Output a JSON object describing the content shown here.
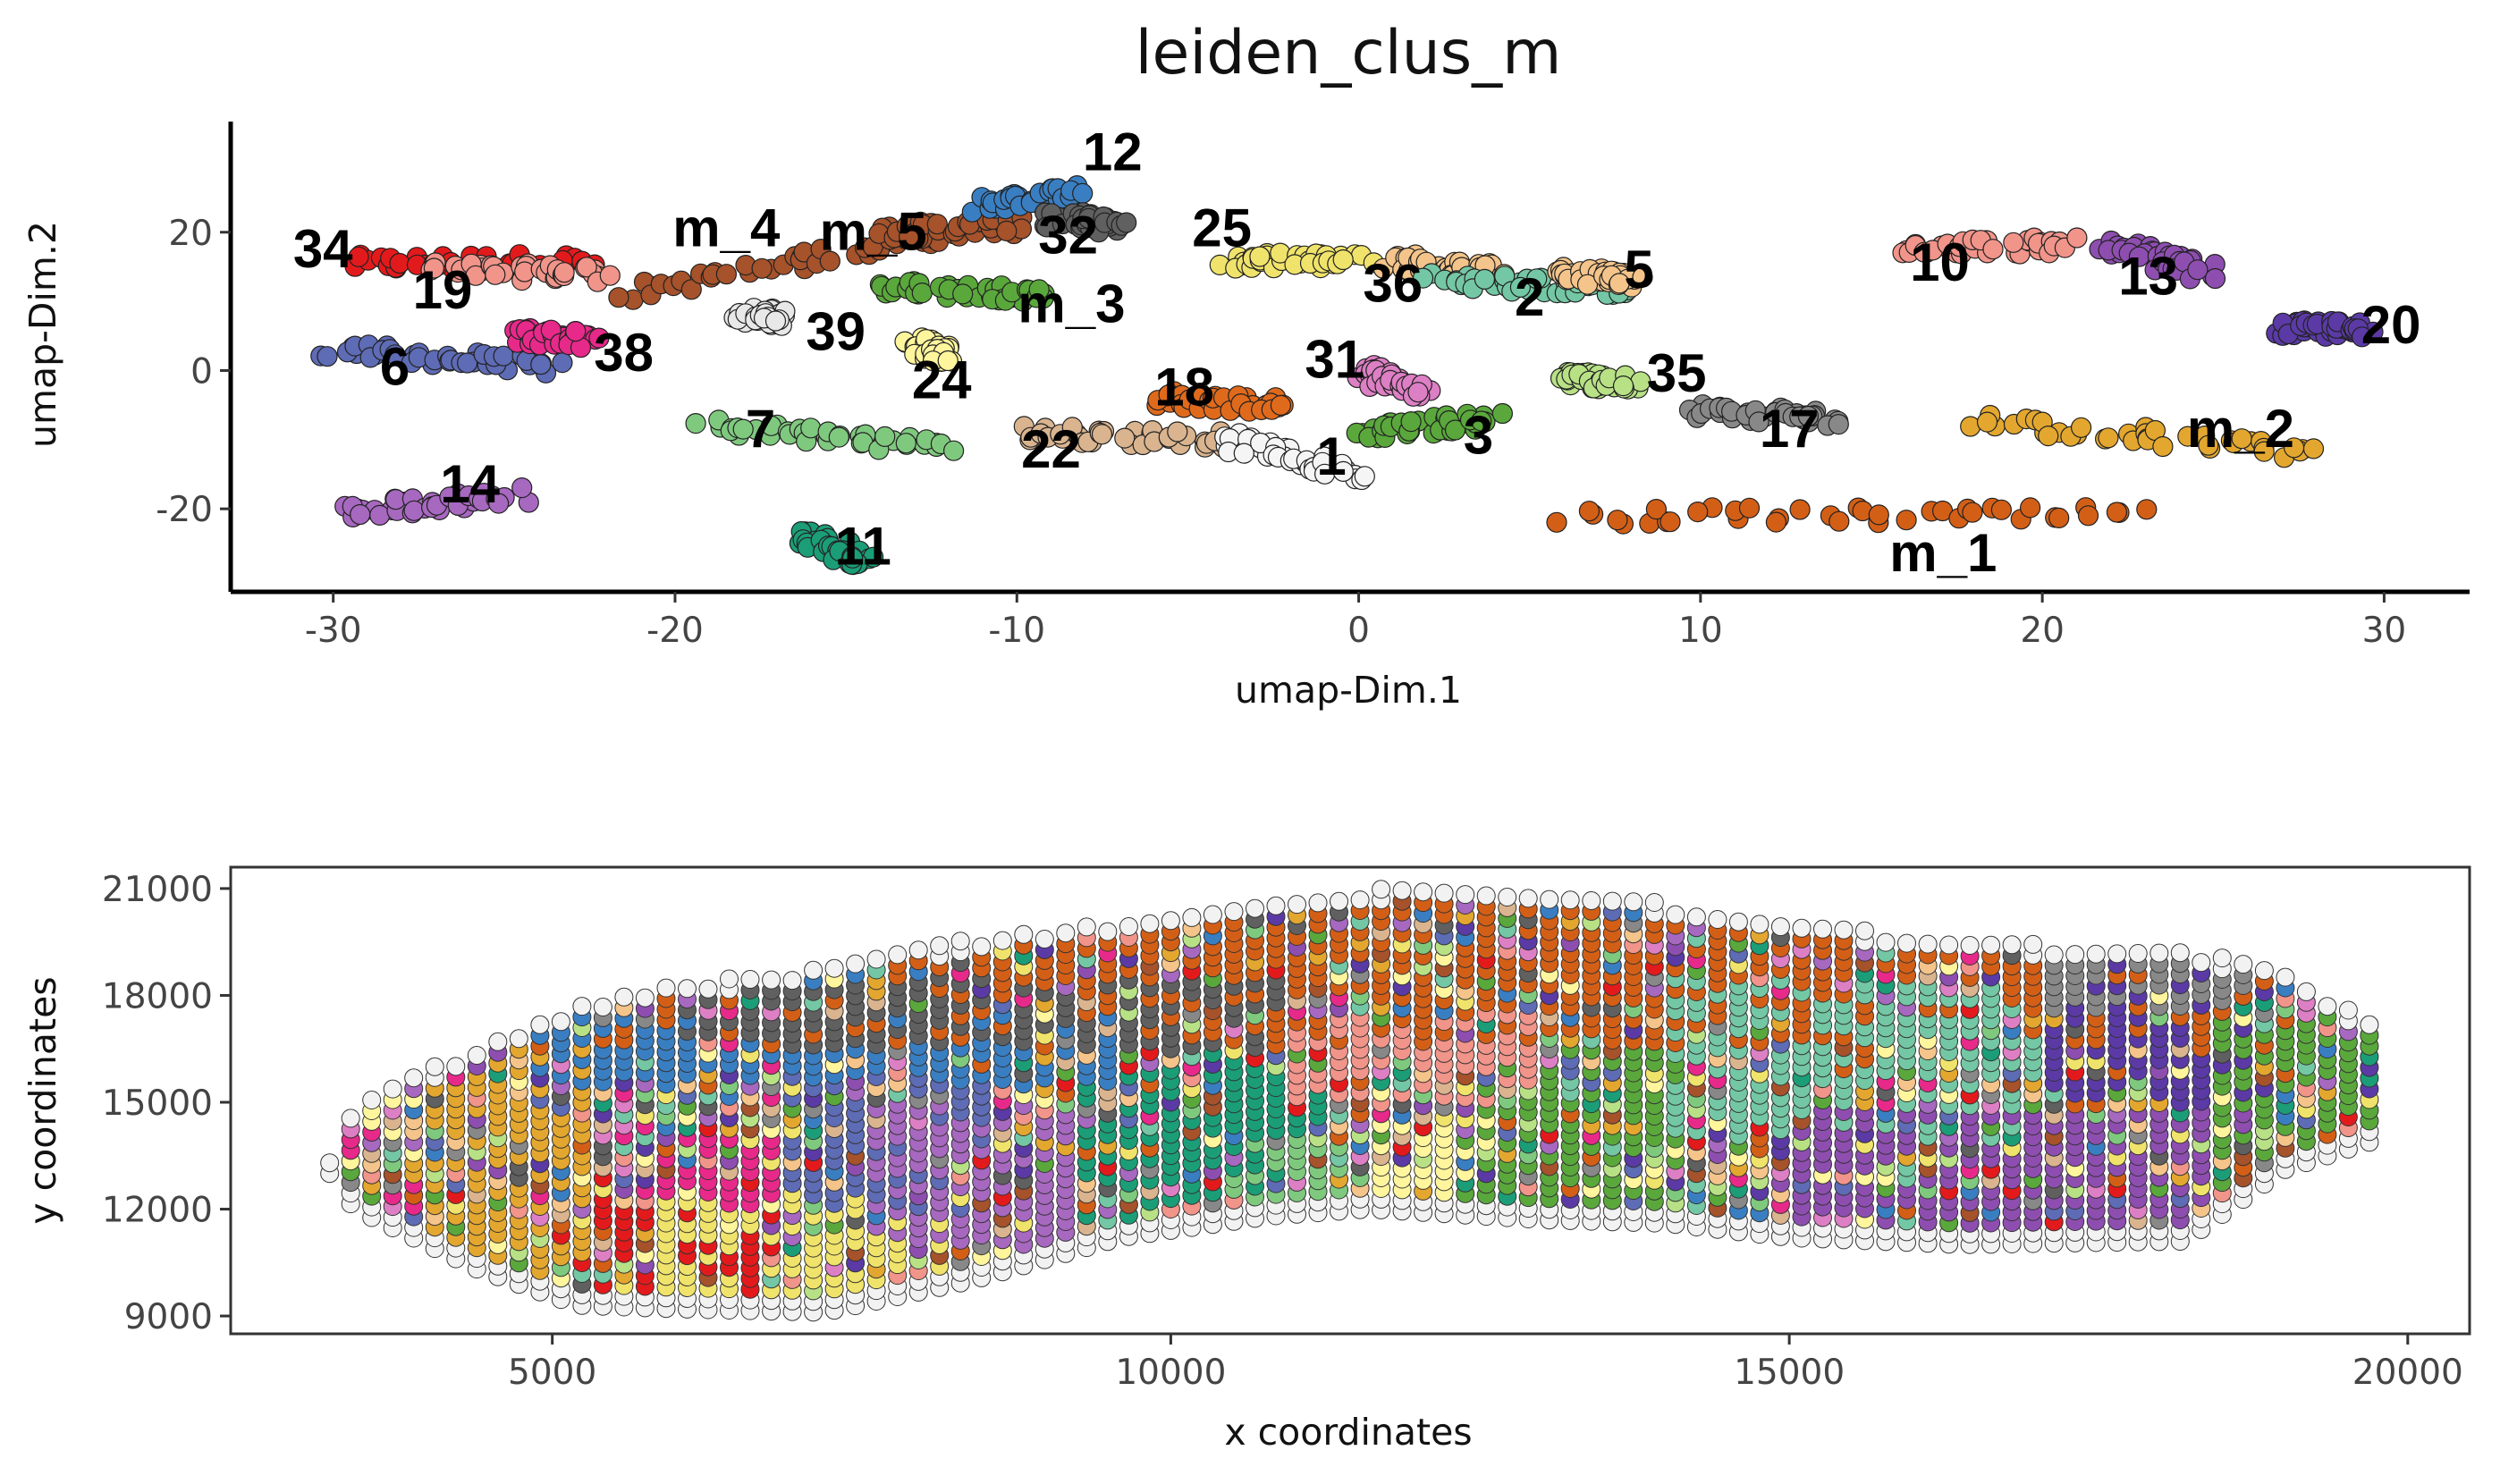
{
  "chart_data": [
    {
      "type": "scatter",
      "title": "leiden_clus_m",
      "xlabel": "umap-Dim.1",
      "ylabel": "umap-Dim.2",
      "xlim": [
        -33,
        32.5
      ],
      "ylim": [
        -32,
        36
      ],
      "xticks": [
        -30,
        -20,
        -10,
        0,
        10,
        20,
        30
      ],
      "yticks": [
        -20,
        0,
        20
      ],
      "grid": false,
      "clusters": [
        {
          "label": "34",
          "color": "#e31a1c",
          "label_pos": [
            -30.3,
            17
          ],
          "points": [
            [
              -29.5,
              15.5
            ],
            [
              -22.5,
              15.8
            ]
          ]
        },
        {
          "label": "19",
          "color": "#f1948a",
          "label_pos": [
            -26.8,
            11
          ],
          "points": [
            [
              -27,
              14.5
            ],
            [
              -22,
              14
            ]
          ]
        },
        {
          "label": "6",
          "color": "#5e6bb5",
          "label_pos": [
            -28.2,
            0
          ],
          "points": [
            [
              -30,
              3
            ],
            [
              -23.5,
              0.5
            ]
          ]
        },
        {
          "label": "38",
          "color": "#e7298a",
          "label_pos": [
            -21.5,
            2
          ],
          "points": [
            [
              -24.5,
              5
            ],
            [
              -22.5,
              4.5
            ]
          ]
        },
        {
          "label": "14",
          "color": "#a768c0",
          "label_pos": [
            -26,
            -17
          ],
          "points": [
            [
              -30,
              -20.5
            ],
            [
              -24.5,
              -18
            ]
          ]
        },
        {
          "label": "m_4",
          "color": "#a6522b",
          "label_pos": [
            -18.5,
            20
          ],
          "points": [
            [
              -21.5,
              11
            ],
            [
              -12,
              20
            ]
          ]
        },
        {
          "label": "m_5",
          "color": "#a6522b",
          "label_pos": [
            -14.2,
            19.5
          ],
          "points": [
            [
              -14,
              20
            ],
            [
              -10,
              21
            ]
          ]
        },
        {
          "label": "39",
          "color": "#e8e8e8",
          "label_pos": [
            -15.3,
            5
          ],
          "points": [
            [
              -18,
              8
            ],
            [
              -17,
              7.5
            ]
          ]
        },
        {
          "label": "24",
          "color": "#fff59d",
          "label_pos": [
            -12.2,
            -2
          ],
          "points": [
            [
              -13,
              4
            ],
            [
              -12,
              2
            ]
          ]
        },
        {
          "label": "m_3",
          "color": "#5aa83c",
          "label_pos": [
            -8.4,
            9
          ],
          "points": [
            [
              -14,
              12
            ],
            [
              -9,
              11
            ]
          ]
        },
        {
          "label": "12",
          "color": "#3a7ec2",
          "label_pos": [
            -7.2,
            31
          ],
          "points": [
            [
              -11,
              24
            ],
            [
              -8,
              26
            ]
          ]
        },
        {
          "label": "32",
          "color": "#606060",
          "label_pos": [
            -8.5,
            19
          ],
          "points": [
            [
              -9,
              22
            ],
            [
              -7,
              21
            ]
          ]
        },
        {
          "label": "7",
          "color": "#7fc97f",
          "label_pos": [
            -17.5,
            -9
          ],
          "points": [
            [
              -19,
              -8
            ],
            [
              -12,
              -11
            ]
          ]
        },
        {
          "label": "11",
          "color": "#1b9e77",
          "label_pos": [
            -14.5,
            -26
          ],
          "points": [
            [
              -16,
              -24
            ],
            [
              -14.5,
              -28
            ]
          ]
        },
        {
          "label": "22",
          "color": "#d9b48f",
          "label_pos": [
            -9,
            -12
          ],
          "points": [
            [
              -10,
              -9
            ],
            [
              -4,
              -10
            ]
          ]
        },
        {
          "label": "18",
          "color": "#e06a1c",
          "label_pos": [
            -5.1,
            -3
          ],
          "points": [
            [
              -6,
              -4
            ],
            [
              -2,
              -5
            ]
          ]
        },
        {
          "label": "1",
          "color": "#f5f5f5",
          "label_pos": [
            -0.8,
            -13
          ],
          "points": [
            [
              -4,
              -10
            ],
            [
              0,
              -15
            ]
          ]
        },
        {
          "label": "25",
          "color": "#f0e36b",
          "label_pos": [
            -4,
            20
          ],
          "points": [
            [
              -4,
              16
            ],
            [
              0,
              16
            ]
          ]
        },
        {
          "label": "31",
          "color": "#dd7fc4",
          "label_pos": [
            -0.7,
            1
          ],
          "points": [
            [
              0,
              0
            ],
            [
              2,
              -3
            ]
          ]
        },
        {
          "label": "36",
          "color": "#f4c48a",
          "label_pos": [
            1,
            12
          ],
          "points": [
            [
              1,
              16
            ],
            [
              4,
              14
            ]
          ]
        },
        {
          "label": "3",
          "color": "#5aa83c",
          "label_pos": [
            3.5,
            -10
          ],
          "points": [
            [
              0,
              -9
            ],
            [
              4,
              -7
            ]
          ]
        },
        {
          "label": "2",
          "color": "#74c7a4",
          "label_pos": [
            5,
            10
          ],
          "points": [
            [
              2,
              13
            ],
            [
              8,
              12
            ]
          ]
        },
        {
          "label": "5",
          "color": "#f4c48a",
          "label_pos": [
            8.2,
            14
          ],
          "points": [
            [
              6,
              14
            ],
            [
              8,
              13
            ]
          ]
        },
        {
          "label": "35",
          "color": "#b8e186",
          "label_pos": [
            9.3,
            -1
          ],
          "points": [
            [
              6,
              -1
            ],
            [
              8,
              -2
            ]
          ]
        },
        {
          "label": "17",
          "color": "#888888",
          "label_pos": [
            12.6,
            -9
          ],
          "points": [
            [
              10,
              -6
            ],
            [
              14,
              -7
            ]
          ]
        },
        {
          "label": "10",
          "color": "#f1948a",
          "label_pos": [
            17,
            15
          ],
          "points": [
            [
              16,
              18
            ],
            [
              21,
              18
            ]
          ]
        },
        {
          "label": "13",
          "color": "#8e4eb0",
          "label_pos": [
            23.1,
            13
          ],
          "points": [
            [
              22,
              18
            ],
            [
              25,
              14
            ]
          ]
        },
        {
          "label": "20",
          "color": "#5b3aa6",
          "label_pos": [
            30.2,
            6
          ],
          "points": [
            [
              27,
              6
            ],
            [
              29.5,
              6
            ]
          ]
        },
        {
          "label": "m_2",
          "color": "#e3a72f",
          "label_pos": [
            25.8,
            -9
          ],
          "points": [
            [
              18,
              -7
            ],
            [
              28,
              -12
            ]
          ]
        },
        {
          "label": "m_1",
          "color": "#d35f17",
          "label_pos": [
            17.1,
            -27
          ],
          "points": [
            [
              6,
              -21
            ],
            [
              23,
              -21
            ]
          ]
        }
      ]
    },
    {
      "type": "scatter",
      "title": "",
      "xlabel": "x coordinates",
      "ylabel": "y coordinates",
      "xlim": [
        2400,
        20500
      ],
      "ylim": [
        8500,
        21600
      ],
      "xticks": [
        5000,
        10000,
        15000,
        20000
      ],
      "yticks": [
        9000,
        12000,
        15000,
        18000,
        21000
      ],
      "tick_labels_x": [
        "5000",
        "10000",
        "15000",
        "20000"
      ],
      "tick_labels_y": [
        "9000",
        "12000",
        "15000",
        "18000",
        "21000"
      ],
      "grid": false,
      "column_spacing": 170,
      "row_spacing": 300,
      "tissue_columns": [
        {
          "x": 3200,
          "y_min": 13000,
          "y_max": 13500
        },
        {
          "x": 3400,
          "y_min": 12000,
          "y_max": 14900
        },
        {
          "x": 4400,
          "y_min": 10300,
          "y_max": 16600
        },
        {
          "x": 5200,
          "y_min": 9300,
          "y_max": 17700
        },
        {
          "x": 6000,
          "y_min": 9200,
          "y_max": 18300
        },
        {
          "x": 7200,
          "y_min": 9100,
          "y_max": 18800
        },
        {
          "x": 8400,
          "y_min": 10000,
          "y_max": 19600
        },
        {
          "x": 9600,
          "y_min": 11200,
          "y_max": 20100
        },
        {
          "x": 10800,
          "y_min": 11800,
          "y_max": 20600
        },
        {
          "x": 11600,
          "y_min": 12000,
          "y_max": 21000
        },
        {
          "x": 13000,
          "y_min": 11700,
          "y_max": 21000
        },
        {
          "x": 14000,
          "y_min": 11600,
          "y_max": 20600
        },
        {
          "x": 15000,
          "y_min": 11200,
          "y_max": 20100
        },
        {
          "x": 16400,
          "y_min": 11000,
          "y_max": 19500
        },
        {
          "x": 18200,
          "y_min": 11100,
          "y_max": 19300
        },
        {
          "x": 19000,
          "y_min": 13100,
          "y_max": 18700
        },
        {
          "x": 19800,
          "y_min": 14000,
          "y_max": 17000
        }
      ],
      "cluster_regions": [
        {
          "color": "#d35f17",
          "x": [
            3400,
            19000
          ],
          "y": [
            16500,
            21000
          ]
        },
        {
          "color": "#e3a72f",
          "x": [
            3800,
            5400
          ],
          "y": [
            10500,
            17000
          ]
        },
        {
          "color": "#e31a1c",
          "x": [
            5400,
            6600
          ],
          "y": [
            9600,
            13000
          ]
        },
        {
          "color": "#f0e36b",
          "x": [
            5800,
            8400
          ],
          "y": [
            9300,
            12500
          ]
        },
        {
          "color": "#e7298a",
          "x": [
            5600,
            6800
          ],
          "y": [
            12000,
            14000
          ]
        },
        {
          "color": "#5e6bb5",
          "x": [
            6800,
            8600
          ],
          "y": [
            12000,
            16000
          ]
        },
        {
          "color": "#a768c0",
          "x": [
            7600,
            9200
          ],
          "y": [
            11000,
            15000
          ]
        },
        {
          "color": "#1b9e77",
          "x": [
            9200,
            11200
          ],
          "y": [
            11800,
            16000
          ]
        },
        {
          "color": "#7fc97f",
          "x": [
            10400,
            11400
          ],
          "y": [
            11800,
            14000
          ]
        },
        {
          "color": "#fff59d",
          "x": [
            11600,
            12600
          ],
          "y": [
            11600,
            14500
          ]
        },
        {
          "color": "#5aa83c",
          "x": [
            12400,
            14200
          ],
          "y": [
            11600,
            16500
          ]
        },
        {
          "color": "#f1948a",
          "x": [
            11000,
            13000
          ],
          "y": [
            15000,
            17500
          ]
        },
        {
          "color": "#74c7a4",
          "x": [
            14000,
            17000
          ],
          "y": [
            14000,
            18500
          ]
        },
        {
          "color": "#8e4eb0",
          "x": [
            15000,
            18400
          ],
          "y": [
            11000,
            14800
          ]
        },
        {
          "color": "#5b3aa6",
          "x": [
            17000,
            19000
          ],
          "y": [
            15000,
            19000
          ]
        },
        {
          "color": "#5aa83c",
          "x": [
            18400,
            19900
          ],
          "y": [
            12500,
            17500
          ]
        },
        {
          "color": "#3a7ec2",
          "x": [
            4600,
            9600
          ],
          "y": [
            15500,
            17500
          ]
        },
        {
          "color": "#606060",
          "x": [
            6000,
            11000
          ],
          "y": [
            16500,
            18500
          ]
        },
        {
          "color": "#888888",
          "x": [
            17000,
            19000
          ],
          "y": [
            17500,
            19400
          ]
        }
      ],
      "palette": [
        "#d35f17",
        "#a6522b",
        "#e3a72f",
        "#f0e36b",
        "#e31a1c",
        "#e7298a",
        "#5e6bb5",
        "#a768c0",
        "#1b9e77",
        "#7fc97f",
        "#5aa83c",
        "#fff59d",
        "#f1948a",
        "#74c7a4",
        "#8e4eb0",
        "#5b3aa6",
        "#3a7ec2",
        "#606060",
        "#888888",
        "#f4c48a",
        "#b8e186",
        "#d9b48f",
        "#dd7fc4"
      ]
    }
  ]
}
